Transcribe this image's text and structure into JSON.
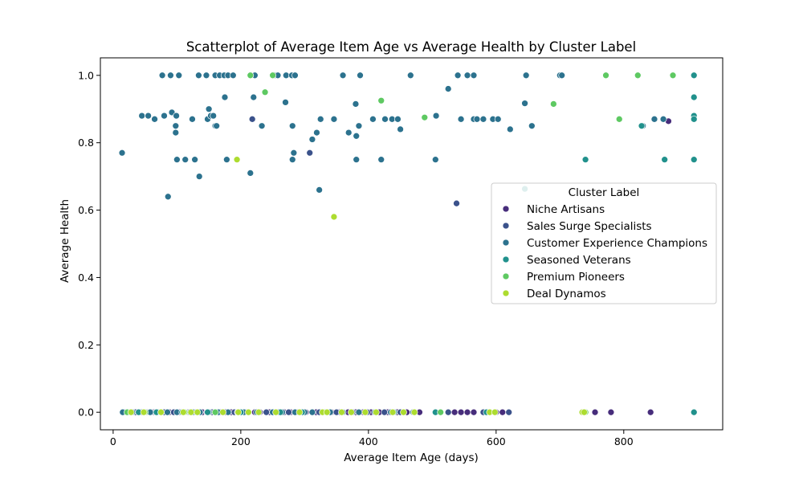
{
  "chart_data": {
    "type": "scatter",
    "title": "Scatterplot of Average Item Age vs Average Health by Cluster Label",
    "xlabel": "Average Item Age (days)",
    "ylabel": "Average Health",
    "xlim": [
      -20,
      955
    ],
    "ylim": [
      -0.052,
      1.052
    ],
    "xticks": [
      0,
      200,
      400,
      600,
      800
    ],
    "yticks": [
      0.0,
      0.2,
      0.4,
      0.6,
      0.8,
      1.0
    ],
    "xtick_labels": [
      "0",
      "200",
      "400",
      "600",
      "800"
    ],
    "ytick_labels": [
      "0.0",
      "0.2",
      "0.4",
      "0.6",
      "0.8",
      "1.0"
    ],
    "grid": false,
    "legend": {
      "title": "Cluster Label",
      "placement": "center-right"
    },
    "series": [
      {
        "name": "Niche Artisans",
        "color": "#472d7b",
        "points": [
          [
            15,
            0
          ],
          [
            25,
            0
          ],
          [
            38,
            0
          ],
          [
            52,
            0
          ],
          [
            63,
            0
          ],
          [
            72,
            0
          ],
          [
            88,
            0
          ],
          [
            97,
            0
          ],
          [
            105,
            0
          ],
          [
            118,
            0
          ],
          [
            130,
            0
          ],
          [
            140,
            0
          ],
          [
            147,
            0
          ],
          [
            158,
            0
          ],
          [
            168,
            0
          ],
          [
            176,
            0
          ],
          [
            185,
            0
          ],
          [
            197,
            0
          ],
          [
            210,
            0
          ],
          [
            222,
            0
          ],
          [
            230,
            0
          ],
          [
            245,
            0
          ],
          [
            258,
            0
          ],
          [
            268,
            0
          ],
          [
            278,
            0
          ],
          [
            290,
            0
          ],
          [
            302,
            0
          ],
          [
            318,
            0
          ],
          [
            330,
            0
          ],
          [
            342,
            0
          ],
          [
            355,
            0
          ],
          [
            368,
            0
          ],
          [
            380,
            0
          ],
          [
            392,
            0
          ],
          [
            404,
            0
          ],
          [
            417,
            0
          ],
          [
            430,
            0
          ],
          [
            445,
            0
          ],
          [
            460,
            0
          ],
          [
            480,
            0
          ],
          [
            535,
            0
          ],
          [
            545,
            0
          ],
          [
            555,
            0
          ],
          [
            565,
            0
          ],
          [
            600,
            0
          ],
          [
            610,
            0
          ],
          [
            755,
            0
          ],
          [
            780,
            0
          ],
          [
            842,
            0
          ],
          [
            870,
            0.864
          ]
        ]
      },
      {
        "name": "Sales Surge Specialists",
        "color": "#3b528b",
        "points": [
          [
            20,
            0
          ],
          [
            35,
            0
          ],
          [
            60,
            0
          ],
          [
            80,
            0
          ],
          [
            95,
            0
          ],
          [
            120,
            0
          ],
          [
            155,
            0
          ],
          [
            190,
            0
          ],
          [
            218,
            0.87
          ],
          [
            240,
            0
          ],
          [
            275,
            0
          ],
          [
            308,
            0.77
          ],
          [
            323,
            0
          ],
          [
            350,
            0
          ],
          [
            375,
            0
          ],
          [
            398,
            0
          ],
          [
            425,
            0
          ],
          [
            450,
            0
          ],
          [
            525,
            0
          ],
          [
            538,
            0.62
          ],
          [
            580,
            0
          ],
          [
            620,
            0
          ]
        ]
      },
      {
        "name": "Customer Experience Champions",
        "color": "#2c728e",
        "points": [
          [
            14,
            0.77
          ],
          [
            45,
            0.88
          ],
          [
            55,
            0.88
          ],
          [
            65,
            0.87
          ],
          [
            77,
            1.0
          ],
          [
            80,
            0.88
          ],
          [
            86,
            0.64
          ],
          [
            90,
            1.0
          ],
          [
            92,
            0.89
          ],
          [
            98,
            0.85
          ],
          [
            98,
            0.83
          ],
          [
            99,
            0.88
          ],
          [
            100,
            0.75
          ],
          [
            103,
            1.0
          ],
          [
            113,
            0.75
          ],
          [
            124,
            0.87
          ],
          [
            128,
            0.75
          ],
          [
            134,
            1.0
          ],
          [
            135,
            0.7
          ],
          [
            146,
            1.0
          ],
          [
            148,
            0.87
          ],
          [
            150,
            0.9
          ],
          [
            153,
            0.88
          ],
          [
            157,
            0.88
          ],
          [
            160,
            1.0
          ],
          [
            160,
            0.85
          ],
          [
            162,
            0.85
          ],
          [
            167,
            1.0
          ],
          [
            174,
            1.0
          ],
          [
            175,
            0.935
          ],
          [
            178,
            0.75
          ],
          [
            180,
            1.0
          ],
          [
            188,
            1.0
          ],
          [
            215,
            0.71
          ],
          [
            220,
            0.935
          ],
          [
            222,
            1.0
          ],
          [
            233,
            0.85
          ],
          [
            253,
            1.0
          ],
          [
            258,
            1.0
          ],
          [
            270,
            0.92
          ],
          [
            271,
            1.0
          ],
          [
            280,
            1.0
          ],
          [
            281,
            0.85
          ],
          [
            281,
            0.75
          ],
          [
            283,
            0.77
          ],
          [
            285,
            1.0
          ],
          [
            312,
            0.81
          ],
          [
            319,
            0.83
          ],
          [
            323,
            0.66
          ],
          [
            325,
            0.87
          ],
          [
            346,
            0.87
          ],
          [
            360,
            1.0
          ],
          [
            369,
            0.83
          ],
          [
            380,
            0.915
          ],
          [
            381,
            0.75
          ],
          [
            381,
            0.82
          ],
          [
            385,
            0.85
          ],
          [
            387,
            1.0
          ],
          [
            407,
            0.87
          ],
          [
            420,
            0.75
          ],
          [
            426,
            0.87
          ],
          [
            437,
            0.87
          ],
          [
            446,
            0.87
          ],
          [
            450,
            0.84
          ],
          [
            466,
            1.0
          ],
          [
            505,
            0.75
          ],
          [
            506,
            0.88
          ],
          [
            525,
            0.96
          ],
          [
            540,
            1.0
          ],
          [
            545,
            0.87
          ],
          [
            555,
            1.0
          ],
          [
            565,
            1.0
          ],
          [
            565,
            0.87
          ],
          [
            570,
            0.87
          ],
          [
            580,
            0.87
          ],
          [
            595,
            0.87
          ],
          [
            603,
            0.87
          ],
          [
            622,
            0.84
          ],
          [
            645,
            0.917
          ],
          [
            647,
            1.0
          ],
          [
            656,
            0.85
          ],
          [
            700,
            1.0
          ],
          [
            703,
            1.0
          ],
          [
            848,
            0.87
          ],
          [
            862,
            0.87
          ],
          [
            830,
            0.85
          ],
          [
            15,
            0
          ],
          [
            30,
            0
          ],
          [
            45,
            0
          ],
          [
            58,
            0
          ],
          [
            70,
            0
          ],
          [
            85,
            0
          ],
          [
            100,
            0
          ],
          [
            112,
            0
          ],
          [
            125,
            0
          ],
          [
            136,
            0
          ],
          [
            150,
            0
          ],
          [
            165,
            0
          ],
          [
            180,
            0
          ],
          [
            195,
            0
          ],
          [
            205,
            0
          ],
          [
            225,
            0
          ],
          [
            250,
            0
          ],
          [
            265,
            0
          ],
          [
            285,
            0
          ],
          [
            300,
            0
          ],
          [
            312,
            0
          ],
          [
            340,
            0
          ],
          [
            360,
            0
          ],
          [
            385,
            0
          ],
          [
            410,
            0
          ],
          [
            435,
            0
          ],
          [
            470,
            0
          ]
        ]
      },
      {
        "name": "Seasoned Veterans",
        "color": "#21918c",
        "points": [
          [
            40,
            0
          ],
          [
            68,
            0
          ],
          [
            108,
            0
          ],
          [
            148,
            0
          ],
          [
            200,
            0
          ],
          [
            262,
            0
          ],
          [
            296,
            0
          ],
          [
            333,
            0
          ],
          [
            440,
            0
          ],
          [
            505,
            0
          ],
          [
            585,
            0
          ],
          [
            645,
            0.663
          ],
          [
            740,
            0.75
          ],
          [
            828,
            0.85
          ],
          [
            864,
            0.75
          ],
          [
            910,
            1.0
          ],
          [
            910,
            0.935
          ],
          [
            910,
            0.88
          ],
          [
            910,
            0.87
          ],
          [
            910,
            0.75
          ],
          [
            910,
            0
          ]
        ]
      },
      {
        "name": "Premium Pioneers",
        "color": "#5ec962",
        "points": [
          [
            22,
            0
          ],
          [
            50,
            0
          ],
          [
            112,
            0
          ],
          [
            160,
            0
          ],
          [
            215,
            1.0
          ],
          [
            238,
            0.95
          ],
          [
            250,
            1.0
          ],
          [
            420,
            0.925
          ],
          [
            488,
            0.875
          ],
          [
            513,
            0
          ],
          [
            690,
            0.915
          ],
          [
            740,
            0
          ],
          [
            772,
            1.0
          ],
          [
            793,
            0.87
          ],
          [
            822,
            1.0
          ],
          [
            877,
            1.0
          ]
        ]
      },
      {
        "name": "Deal Dynamos",
        "color": "#addc30",
        "points": [
          [
            28,
            0
          ],
          [
            48,
            0
          ],
          [
            75,
            0
          ],
          [
            110,
            0
          ],
          [
            122,
            0
          ],
          [
            132,
            0
          ],
          [
            172,
            0
          ],
          [
            194,
            0.75
          ],
          [
            196,
            0
          ],
          [
            212,
            0
          ],
          [
            228,
            0
          ],
          [
            255,
            0
          ],
          [
            292,
            0
          ],
          [
            328,
            0
          ],
          [
            335,
            0
          ],
          [
            346,
            0.58
          ],
          [
            358,
            0
          ],
          [
            373,
            0
          ],
          [
            395,
            0
          ],
          [
            412,
            0
          ],
          [
            438,
            0
          ],
          [
            455,
            0
          ],
          [
            472,
            0
          ],
          [
            590,
            0
          ],
          [
            598,
            0
          ],
          [
            735,
            0
          ],
          [
            738,
            0
          ]
        ]
      }
    ]
  }
}
